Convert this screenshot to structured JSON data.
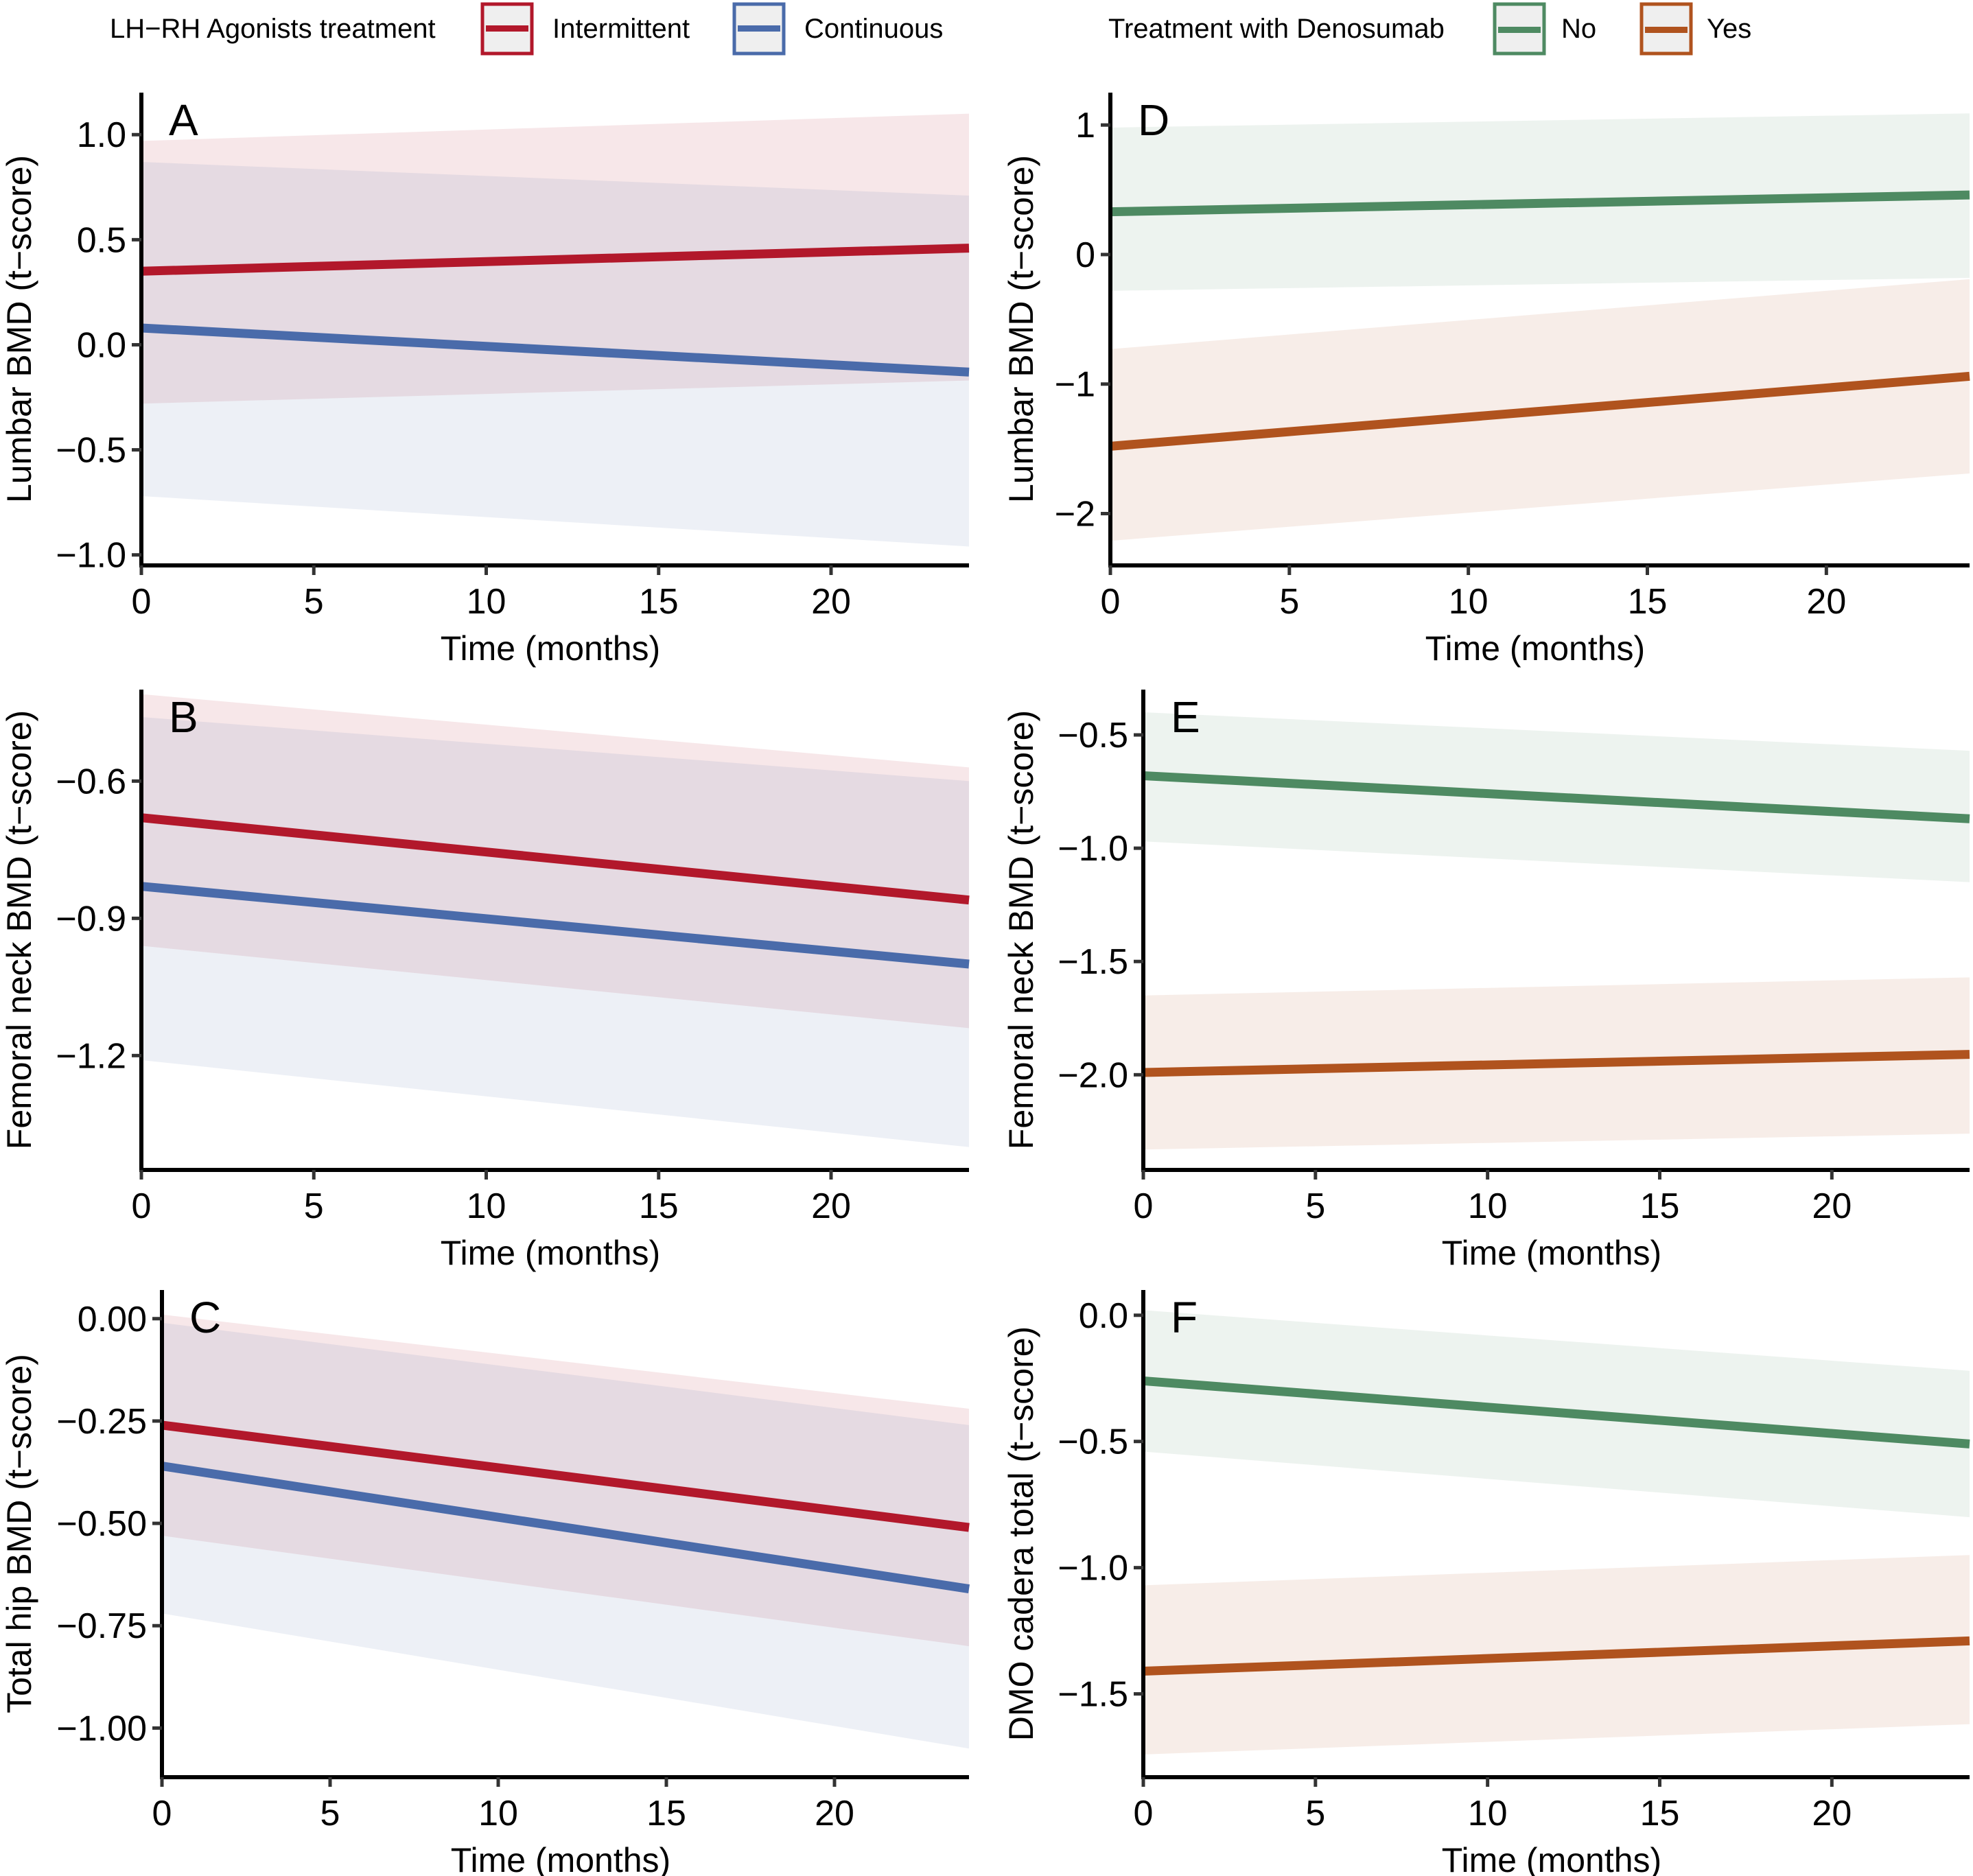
{
  "legends": [
    {
      "title": "LH−RH Agonists treatment",
      "entries": [
        {
          "label": "Intermittent",
          "color": "#B2182B"
        },
        {
          "label": "Continuous",
          "color": "#4A6BAA"
        }
      ]
    },
    {
      "title": "Treatment with Denosumab",
      "entries": [
        {
          "label": "No",
          "color": "#4E8A62"
        },
        {
          "label": "Yes",
          "color": "#B0531E"
        }
      ]
    }
  ],
  "chart_data": [
    {
      "panel": "A",
      "type": "line",
      "ylabel": "Lumbar BMD (t−score)",
      "xlabel": "Time (months)",
      "xlim": [
        0,
        24
      ],
      "ylim": [
        -1.05,
        1.2
      ],
      "xticks": [
        0,
        5,
        10,
        15,
        20
      ],
      "yticks": [
        -1.0,
        -0.5,
        0.0,
        0.5,
        1.0
      ],
      "ytick_labels": [
        "−1.0",
        "−0.5",
        "0.0",
        "0.5",
        "1.0"
      ],
      "legend_group": 0,
      "series": [
        {
          "name": "Intermittent",
          "x": [
            0,
            24
          ],
          "y": [
            0.35,
            0.46
          ],
          "ci_low": [
            -0.28,
            -0.17
          ],
          "ci_high": [
            0.97,
            1.1
          ]
        },
        {
          "name": "Continuous",
          "x": [
            0,
            24
          ],
          "y": [
            0.08,
            -0.13
          ],
          "ci_low": [
            -0.72,
            -0.96
          ],
          "ci_high": [
            0.87,
            0.71
          ]
        }
      ]
    },
    {
      "panel": "B",
      "type": "line",
      "ylabel": "Femoral neck BMD (t−score)",
      "xlabel": "Time (months)",
      "xlim": [
        0,
        24
      ],
      "ylim": [
        -1.45,
        -0.4
      ],
      "xticks": [
        0,
        5,
        10,
        15,
        20
      ],
      "yticks": [
        -1.2,
        -0.9,
        -0.6
      ],
      "ytick_labels": [
        "−1.2",
        "−0.9",
        "−0.6"
      ],
      "legend_group": 0,
      "series": [
        {
          "name": "Intermittent",
          "x": [
            0,
            24
          ],
          "y": [
            -0.68,
            -0.86
          ],
          "ci_low": [
            -0.96,
            -1.14
          ],
          "ci_high": [
            -0.41,
            -0.57
          ]
        },
        {
          "name": "Continuous",
          "x": [
            0,
            24
          ],
          "y": [
            -0.83,
            -1.0
          ],
          "ci_low": [
            -1.21,
            -1.4
          ],
          "ci_high": [
            -0.46,
            -0.6
          ]
        }
      ]
    },
    {
      "panel": "C",
      "type": "line",
      "ylabel": "Total hip BMD (t−score)",
      "xlabel": "Time (months)",
      "xlim": [
        0,
        24
      ],
      "ylim": [
        -1.12,
        0.07
      ],
      "xticks": [
        0,
        5,
        10,
        15,
        20
      ],
      "yticks": [
        -1.0,
        -0.75,
        -0.5,
        -0.25,
        0.0
      ],
      "ytick_labels": [
        "−1.00",
        "−0.75",
        "−0.50",
        "−0.25",
        "0.00"
      ],
      "legend_group": 0,
      "series": [
        {
          "name": "Intermittent",
          "x": [
            0,
            24
          ],
          "y": [
            -0.26,
            -0.51
          ],
          "ci_low": [
            -0.53,
            -0.8
          ],
          "ci_high": [
            0.01,
            -0.22
          ]
        },
        {
          "name": "Continuous",
          "x": [
            0,
            24
          ],
          "y": [
            -0.36,
            -0.66
          ],
          "ci_low": [
            -0.72,
            -1.05
          ],
          "ci_high": [
            -0.01,
            -0.26
          ]
        }
      ]
    },
    {
      "panel": "D",
      "type": "line",
      "ylabel": "Lumbar BMD (t−score)",
      "xlabel": "Time (months)",
      "xlim": [
        0,
        24
      ],
      "ylim": [
        -2.4,
        1.25
      ],
      "xticks": [
        0,
        5,
        10,
        15,
        20
      ],
      "yticks": [
        -2,
        -1,
        0,
        1
      ],
      "ytick_labels": [
        "−2",
        "−1",
        "0",
        "1"
      ],
      "legend_group": 1,
      "series": [
        {
          "name": "No",
          "x": [
            0,
            24
          ],
          "y": [
            0.33,
            0.46
          ],
          "ci_low": [
            -0.28,
            -0.18
          ],
          "ci_high": [
            0.98,
            1.09
          ]
        },
        {
          "name": "Yes",
          "x": [
            0,
            24
          ],
          "y": [
            -1.48,
            -0.94
          ],
          "ci_low": [
            -2.21,
            -1.69
          ],
          "ci_high": [
            -0.73,
            -0.19
          ]
        }
      ]
    },
    {
      "panel": "E",
      "type": "line",
      "ylabel": "Femoral neck BMD (t−score)",
      "xlabel": "Time (months)",
      "xlim": [
        0,
        24
      ],
      "ylim": [
        -2.42,
        -0.3
      ],
      "xticks": [
        0,
        5,
        10,
        15,
        20
      ],
      "yticks": [
        -2.0,
        -1.5,
        -1.0,
        -0.5
      ],
      "ytick_labels": [
        "−2.0",
        "−1.5",
        "−1.0",
        "−0.5"
      ],
      "legend_group": 1,
      "series": [
        {
          "name": "No",
          "x": [
            0,
            24
          ],
          "y": [
            -0.68,
            -0.87
          ],
          "ci_low": [
            -0.97,
            -1.15
          ],
          "ci_high": [
            -0.4,
            -0.57
          ]
        },
        {
          "name": "Yes",
          "x": [
            0,
            24
          ],
          "y": [
            -1.99,
            -1.91
          ],
          "ci_low": [
            -2.33,
            -2.26
          ],
          "ci_high": [
            -1.65,
            -1.57
          ]
        }
      ]
    },
    {
      "panel": "F",
      "type": "line",
      "ylabel": "DMO cadera total (t−score)",
      "xlabel": "Time (months)",
      "xlim": [
        0,
        24
      ],
      "ylim": [
        -1.83,
        0.1
      ],
      "xticks": [
        0,
        5,
        10,
        15,
        20
      ],
      "yticks": [
        -1.5,
        -1.0,
        -0.5,
        0.0
      ],
      "ytick_labels": [
        "−1.5",
        "−1.0",
        "−0.5",
        "0.0"
      ],
      "legend_group": 1,
      "series": [
        {
          "name": "No",
          "x": [
            0,
            24
          ],
          "y": [
            -0.26,
            -0.51
          ],
          "ci_low": [
            -0.54,
            -0.8
          ],
          "ci_high": [
            0.02,
            -0.22
          ]
        },
        {
          "name": "Yes",
          "x": [
            0,
            24
          ],
          "y": [
            -1.41,
            -1.29
          ],
          "ci_low": [
            -1.74,
            -1.62
          ],
          "ci_high": [
            -1.07,
            -0.95
          ]
        }
      ]
    }
  ]
}
